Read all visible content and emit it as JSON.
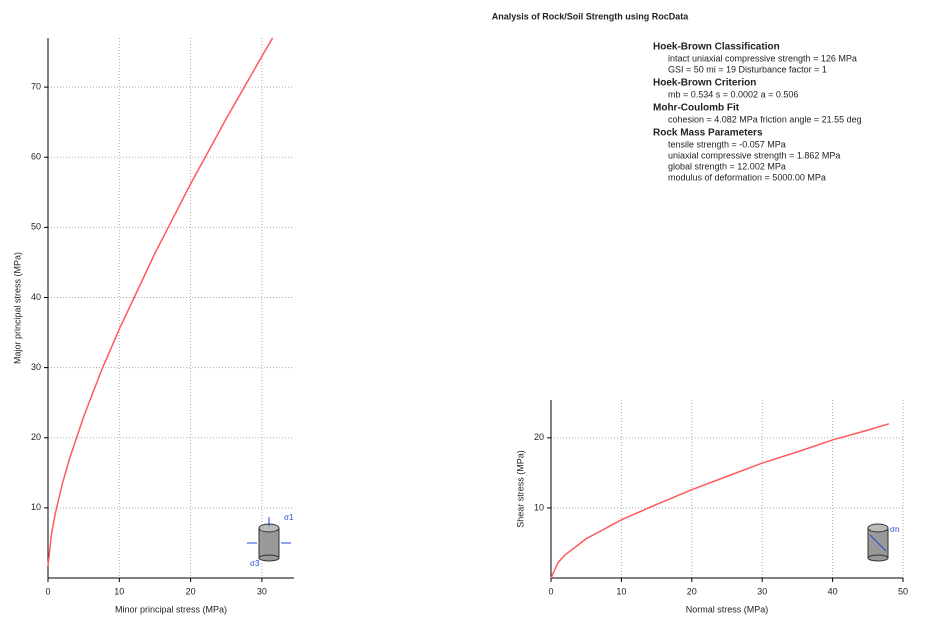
{
  "title": "Analysis of Rock/Soil Strength using RocData",
  "info": [
    {
      "heading": "Hoek-Brown Classification",
      "lines": [
        "intact uniaxial compressive strength = 126 MPa",
        "GSI = 50   mi = 19   Disturbance factor = 1"
      ]
    },
    {
      "heading": "Hoek-Brown Criterion",
      "lines": [
        "mb = 0.534   s = 0.0002   a = 0.506"
      ]
    },
    {
      "heading": "Mohr-Coulomb Fit",
      "lines": [
        "cohesion = 4.082 MPa   friction angle = 21.55 deg"
      ]
    },
    {
      "heading": "Rock Mass Parameters",
      "lines": [
        "tensile strength = -0.057 MPa",
        "uniaxial compressive strength = 1.862 MPa",
        "global strength = 12.002 MPa",
        "modulus of deformation = 5000.00 MPa"
      ]
    }
  ],
  "chart_data": [
    {
      "type": "line",
      "x_label": "Minor principal stress (MPa)",
      "y_label": "Major principal stress (MPa)",
      "x": [
        0,
        0.5,
        1,
        2,
        3,
        5,
        7.5,
        10,
        15,
        20,
        25,
        30,
        31.5
      ],
      "series": [
        {
          "color": "#ff5a5a",
          "values": [
            1.7,
            6.35,
            9.1,
            13.4,
            16.95,
            23.0,
            29.6,
            35.5,
            46.3,
            56.2,
            65.5,
            74.4,
            77.0
          ]
        }
      ],
      "xlim": [
        0,
        34.5
      ],
      "ylim": [
        0,
        77
      ],
      "xticks": [
        0,
        10,
        20,
        30
      ],
      "yticks": [
        10,
        20,
        30,
        40,
        50,
        60,
        70
      ],
      "grid": true,
      "icon_labels": [
        "σ1",
        "σ3"
      ]
    },
    {
      "type": "line",
      "x_label": "Normal stress (MPa)",
      "y_label": "Shear stress (MPa)",
      "x": [
        0,
        1,
        2,
        5,
        10,
        15,
        20,
        25,
        30,
        35,
        40,
        45,
        48
      ],
      "series": [
        {
          "color": "#ff5a5a",
          "values": [
            0,
            2.2,
            3.3,
            5.6,
            8.3,
            10.5,
            12.6,
            14.5,
            16.4,
            18.0,
            19.7,
            21.1,
            22.0
          ]
        }
      ],
      "xlim": [
        0,
        50
      ],
      "ylim": [
        0,
        25.4
      ],
      "xticks": [
        0,
        10,
        20,
        30,
        40,
        50
      ],
      "yticks": [
        10,
        20
      ],
      "grid": true,
      "icon_labels": [
        "σn"
      ]
    }
  ]
}
